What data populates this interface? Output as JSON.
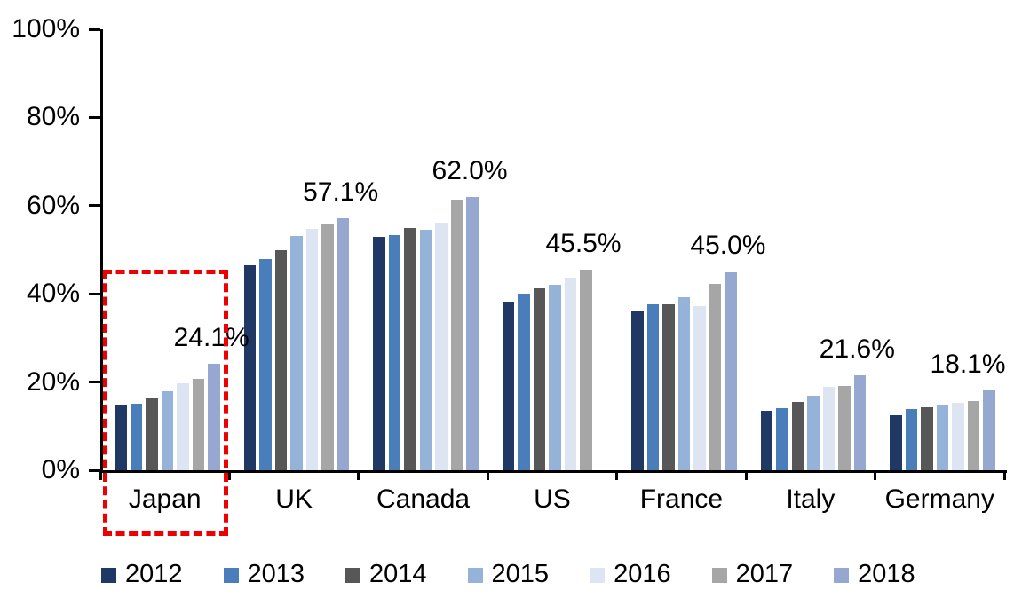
{
  "chart_data": {
    "type": "bar",
    "title": "",
    "categories": [
      "Japan",
      "UK",
      "Canada",
      "US",
      "France",
      "Italy",
      "Germany"
    ],
    "series": [
      {
        "name": "2012",
        "color": "#1F3864",
        "values": [
          14.8,
          46.4,
          52.9,
          38.2,
          36.3,
          13.4,
          12.4
        ]
      },
      {
        "name": "2013",
        "color": "#4A7EBB",
        "values": [
          15.0,
          47.8,
          53.3,
          40.0,
          37.7,
          14.1,
          13.8
        ]
      },
      {
        "name": "2014",
        "color": "#575757",
        "values": [
          16.3,
          49.9,
          55.0,
          41.2,
          37.7,
          15.4,
          14.2
        ]
      },
      {
        "name": "2015",
        "color": "#95B3D9",
        "values": [
          17.9,
          53.1,
          54.6,
          42.0,
          39.3,
          16.9,
          14.6
        ]
      },
      {
        "name": "2016",
        "color": "#DCE5F1",
        "values": [
          19.7,
          54.8,
          56.1,
          43.6,
          37.3,
          19.0,
          15.3
        ]
      },
      {
        "name": "2017",
        "color": "#A6A6A6",
        "values": [
          20.8,
          55.7,
          61.4,
          45.5,
          42.3,
          19.1,
          15.6
        ]
      },
      {
        "name": "2018",
        "color": "#96A8D0",
        "values": [
          24.1,
          57.1,
          62.0,
          null,
          45.0,
          21.6,
          18.1
        ]
      }
    ],
    "annotations": [
      {
        "category": "Japan",
        "series": "2018",
        "text": "24.1%"
      },
      {
        "category": "UK",
        "series": "2018",
        "text": "57.1%"
      },
      {
        "category": "Canada",
        "series": "2018",
        "text": "62.0%"
      },
      {
        "category": "US",
        "series": "2017",
        "text": "45.5%"
      },
      {
        "category": "France",
        "series": "2018",
        "text": "45.0%"
      },
      {
        "category": "Italy",
        "series": "2018",
        "text": "21.6%"
      },
      {
        "category": "Germany",
        "series": "2018",
        "text": "18.1%"
      }
    ],
    "y_axis": {
      "min": 0,
      "max": 100,
      "tick_values": [
        0,
        20,
        40,
        60,
        80,
        100
      ],
      "tick_labels": [
        "0%",
        "20%",
        "40%",
        "60%",
        "80%",
        "100%"
      ]
    },
    "legend_position": "bottom",
    "grid": false,
    "highlight_box": {
      "category": "Japan",
      "color": "#EE0000",
      "style": "dashed",
      "top_value": 45.5
    }
  },
  "colors": {
    "axis": "#000000",
    "background": "#FFFFFF",
    "text": "#000000"
  }
}
